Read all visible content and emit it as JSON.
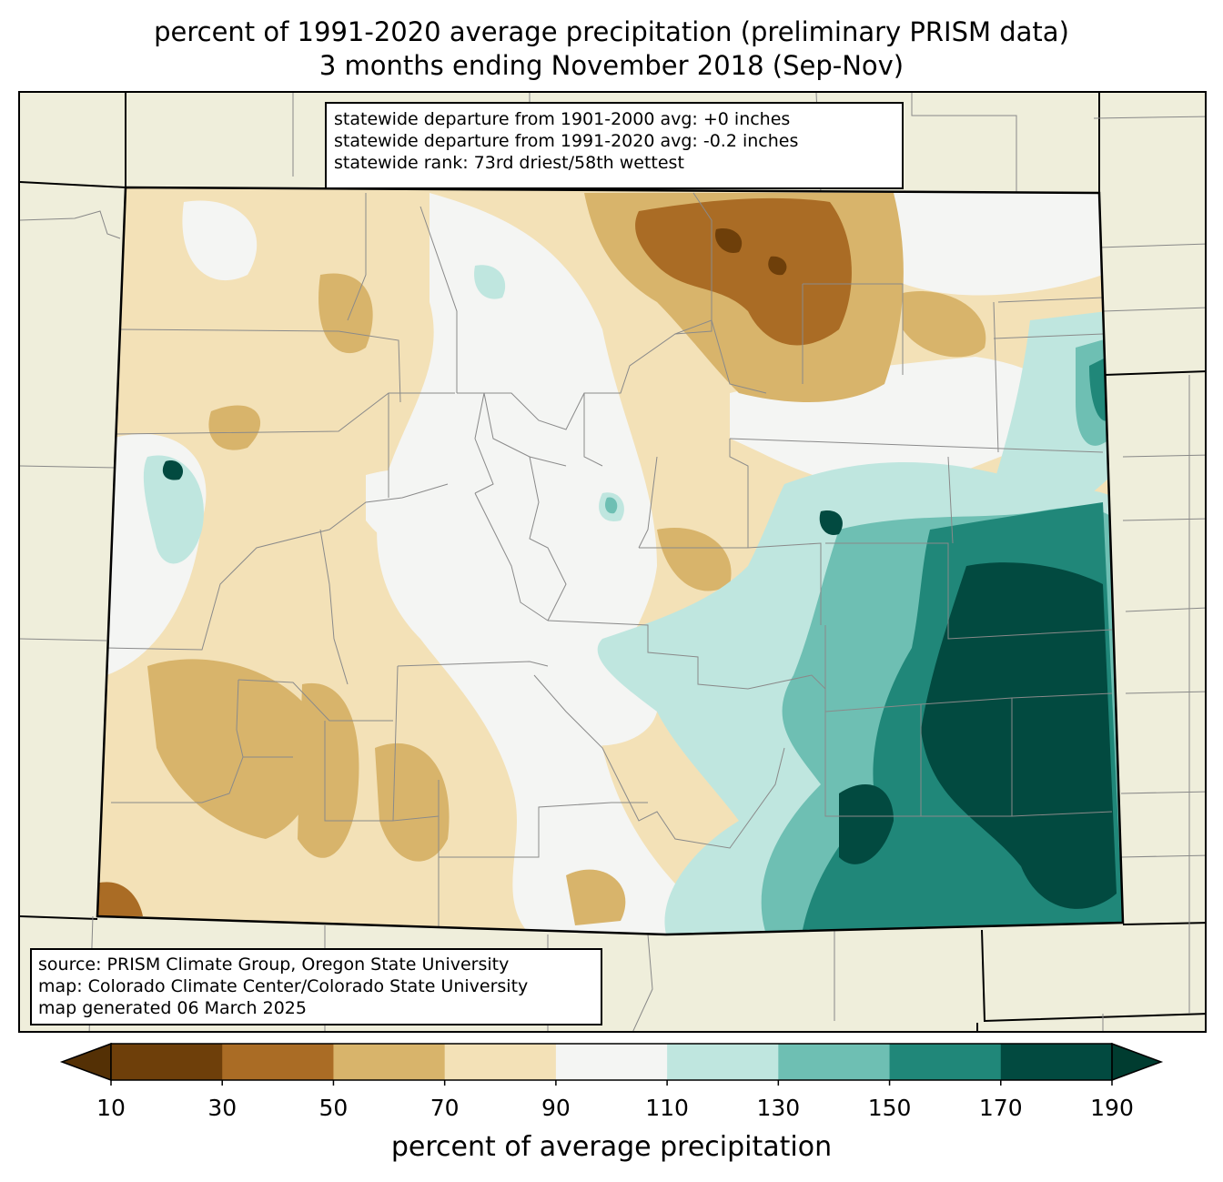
{
  "title": {
    "line1": "percent of 1991-2020 average precipitation (preliminary PRISM data)",
    "line2": "3 months ending November 2018 (Sep-Nov)"
  },
  "stats_box": {
    "line1": "statewide departure from 1901-2000 avg: +0 inches",
    "line2": "statewide departure from 1991-2020 avg: -0.2 inches",
    "line3": "statewide rank: 73rd driest/58th wettest"
  },
  "source_box": {
    "line1": "source: PRISM Climate Group, Oregon State University",
    "line2": "map: Colorado Climate Center/Colorado State University",
    "line3": "map generated 06 March 2025"
  },
  "colorbar": {
    "label": "percent of average precipitation",
    "ticks": [
      "10",
      "30",
      "50",
      "70",
      "90",
      "110",
      "130",
      "150",
      "170",
      "190"
    ],
    "bins": [
      {
        "range": "<10",
        "color": "#543005"
      },
      {
        "range": "10-30",
        "color": "#6e3f0a"
      },
      {
        "range": "30-50",
        "color": "#aa6c25"
      },
      {
        "range": "50-70",
        "color": "#d8b46b"
      },
      {
        "range": "70-90",
        "color": "#f3e1b7"
      },
      {
        "range": "90-110",
        "color": "#f4f5f3"
      },
      {
        "range": "110-130",
        "color": "#bfe6df"
      },
      {
        "range": "130-150",
        "color": "#6ebfb3"
      },
      {
        "range": "150-170",
        "color": "#208779"
      },
      {
        "range": "170-190",
        "color": "#024a40"
      },
      {
        "range": ">190",
        "color": "#003c30"
      }
    ]
  },
  "map": {
    "region": "Colorado",
    "background_color": "#efeedb",
    "pattern": "drier than average (brown) across northern and western Colorado; wetter than average (teal) across southeastern plains"
  }
}
